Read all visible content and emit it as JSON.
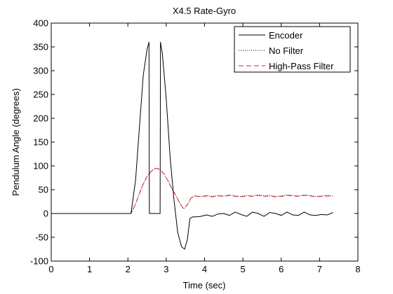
{
  "chart_data": {
    "type": "line",
    "title": "X4.5 Rate-Gyro",
    "xlabel": "Time (sec)",
    "ylabel": "Pendulum Angle (degrees)",
    "xlim": [
      0,
      8
    ],
    "ylim": [
      -100,
      400
    ],
    "xticks": [
      0,
      1,
      2,
      3,
      4,
      5,
      6,
      7,
      8
    ],
    "yticks": [
      -100,
      -50,
      0,
      50,
      100,
      150,
      200,
      250,
      300,
      350,
      400
    ],
    "grid": false,
    "legend": {
      "location": "top-right",
      "entries": [
        "Encoder",
        "No Filter",
        "High-Pass Filter"
      ]
    },
    "series": [
      {
        "name": "Encoder",
        "color": "#000000",
        "style": "solid",
        "x": [
          0,
          2.08,
          2.2,
          2.3,
          2.4,
          2.5,
          2.55,
          2.56,
          2.6,
          2.7,
          2.8,
          2.84,
          2.85,
          2.9,
          3.0,
          3.1,
          3.2,
          3.3,
          3.4,
          3.48,
          3.55,
          3.62,
          3.7,
          3.8,
          3.9,
          4.05,
          4.2,
          4.35,
          4.5,
          4.65,
          4.8,
          4.95,
          5.1,
          5.25,
          5.4,
          5.55,
          5.7,
          5.85,
          6.0,
          6.15,
          6.3,
          6.45,
          6.6,
          6.75,
          6.9,
          7.05,
          7.2,
          7.35
        ],
        "y": [
          0,
          0,
          70,
          180,
          290,
          345,
          360,
          0,
          0,
          0,
          0,
          0,
          360,
          335,
          240,
          120,
          30,
          -40,
          -70,
          -75,
          -55,
          -10,
          -7,
          -7,
          -6,
          -3,
          -6,
          -1,
          0,
          -4,
          3,
          -2,
          -6,
          3,
          0,
          -6,
          2,
          0,
          -4,
          3,
          -3,
          -4,
          3,
          -3,
          -4,
          -2,
          -3,
          2
        ]
      },
      {
        "name": "No Filter",
        "color": "#000000",
        "style": "dotted",
        "x": [
          0,
          2.08,
          2.2,
          2.3,
          2.4,
          2.5,
          2.6,
          2.7,
          2.75,
          2.85,
          2.95,
          3.05,
          3.15,
          3.25,
          3.35,
          3.45,
          3.55,
          3.65,
          3.75,
          3.9,
          4.05,
          4.2,
          4.35,
          4.5,
          4.65,
          4.8,
          4.95,
          5.1,
          5.25,
          5.4,
          5.55,
          5.7,
          5.85,
          6.0,
          6.15,
          6.3,
          6.45,
          6.6,
          6.75,
          6.9,
          7.05,
          7.2,
          7.35
        ],
        "y": [
          0,
          0,
          20,
          42,
          62,
          78,
          88,
          94,
          95,
          92,
          82,
          68,
          52,
          38,
          22,
          10,
          18,
          33,
          37,
          36,
          38,
          36,
          38,
          37,
          39,
          37,
          36,
          38,
          37,
          39,
          37,
          38,
          36,
          37,
          39,
          38,
          37,
          39,
          38,
          36,
          37,
          38,
          37
        ]
      },
      {
        "name": "High-Pass Filter",
        "color": "#e0212b",
        "style": "dashed",
        "x": [
          0,
          2.08,
          2.2,
          2.3,
          2.4,
          2.5,
          2.6,
          2.7,
          2.75,
          2.85,
          2.95,
          3.05,
          3.15,
          3.25,
          3.35,
          3.45,
          3.55,
          3.65,
          3.75,
          3.9,
          4.05,
          4.2,
          4.35,
          4.5,
          4.65,
          4.8,
          4.95,
          5.1,
          5.25,
          5.4,
          5.55,
          5.7,
          5.85,
          6.0,
          6.15,
          6.3,
          6.45,
          6.6,
          6.75,
          6.9,
          7.05,
          7.2,
          7.35
        ],
        "y": [
          0,
          0,
          20,
          42,
          62,
          78,
          88,
          94,
          95,
          92,
          82,
          68,
          52,
          38,
          22,
          10,
          18,
          33,
          37,
          35,
          37,
          35,
          37,
          36,
          38,
          36,
          35,
          37,
          36,
          38,
          36,
          37,
          35,
          36,
          38,
          37,
          36,
          38,
          37,
          35,
          36,
          37,
          36
        ]
      }
    ]
  }
}
